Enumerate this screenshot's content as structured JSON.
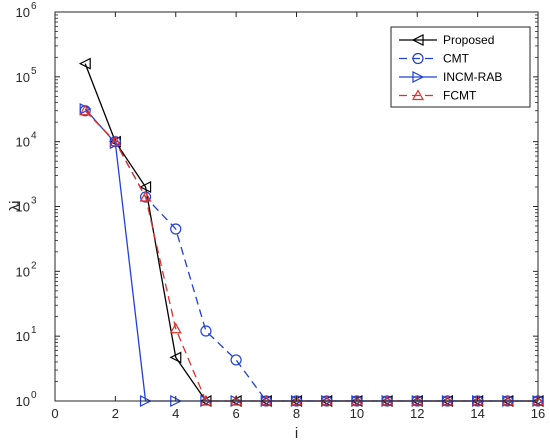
{
  "chart_data": {
    "type": "line",
    "xlabel": "i",
    "ylabel": "λi",
    "y_scale": "log",
    "xlim": [
      0,
      16
    ],
    "ylim": [
      1,
      1000000
    ],
    "x_ticks": [
      0,
      2,
      4,
      6,
      8,
      10,
      12,
      14,
      16
    ],
    "y_ticks": [
      1,
      10,
      100,
      1000,
      10000,
      100000,
      1000000
    ],
    "y_tick_exponents": [
      "0",
      "1",
      "2",
      "3",
      "4",
      "5",
      "6"
    ],
    "y_tick_base": "10",
    "grid": false,
    "legend_position": "top-right",
    "x": [
      1,
      2,
      3,
      4,
      5,
      6,
      7,
      8,
      9,
      10,
      11,
      12,
      13,
      14,
      15,
      16
    ],
    "series": [
      {
        "name": "Proposed",
        "color": "#000000",
        "dash": "solid",
        "marker": "triangle-left",
        "values": [
          160000,
          10000,
          2000,
          4.7,
          1,
          1,
          1,
          1,
          1,
          1,
          1,
          1,
          1,
          1,
          1,
          1
        ]
      },
      {
        "name": "CMT",
        "color": "#2040d8",
        "dash": "dashed",
        "marker": "circle",
        "values": [
          30000,
          10000,
          1400,
          450,
          12,
          4.3,
          1,
          1,
          1,
          1,
          1,
          1,
          1,
          1,
          1,
          1
        ]
      },
      {
        "name": "INCM-RAB",
        "color": "#2040d8",
        "dash": "solid",
        "marker": "triangle-right",
        "values": [
          32000,
          9500,
          1,
          1,
          1,
          1,
          1,
          1,
          1,
          1,
          1,
          1,
          1,
          1,
          1,
          1
        ]
      },
      {
        "name": "FCMT",
        "color": "#e0302a",
        "dash": "dashed",
        "marker": "triangle-up",
        "values": [
          30000,
          10000,
          1400,
          13,
          1,
          1,
          1,
          1,
          1,
          1,
          1,
          1,
          1,
          1,
          1,
          1
        ]
      }
    ]
  }
}
